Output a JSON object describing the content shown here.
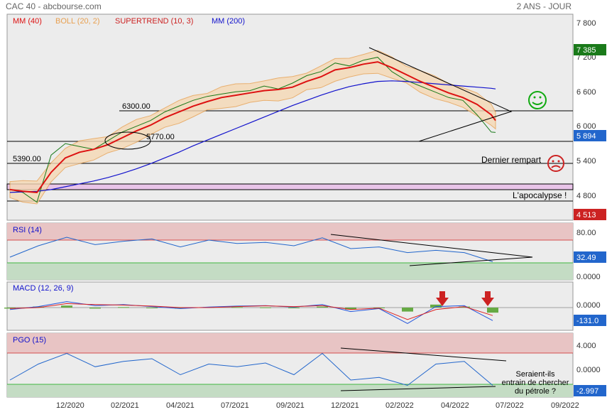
{
  "header": {
    "title": "CAC 40 - abcbourse.com",
    "period": "2 ANS - JOUR"
  },
  "colors": {
    "price": "#1a7a1a",
    "bear": "#cc2222",
    "mm40": "#dd1111",
    "boll": "#e8a050",
    "boll_fill": "#f5d9b5",
    "supertrend": "#119911",
    "mm200": "#1111cc",
    "rsi": "#2266cc",
    "macd_line": "#2255dd",
    "macd_signal": "#dd2222",
    "macd_hist": "#66aa44",
    "pgo": "#2266cc",
    "pgo_signal": "#dd2222",
    "zone_high": "#e8c4c4",
    "zone_low": "#c4dcc4",
    "panel_bg": "#ececec"
  },
  "chart_data": [
    {
      "type": "line",
      "title": "Prix",
      "legend": [
        {
          "label": "MM (40)",
          "color": "#dd1111"
        },
        {
          "label": "BOLL (20, 2)",
          "color": "#e8a050"
        },
        {
          "label": "SUPERTREND (10, 3)",
          "color": "#cc2222"
        },
        {
          "label": "MM (200)",
          "color": "#1111cc"
        }
      ],
      "x_ticks": [
        "12/2020",
        "02/2021",
        "04/2021",
        "07/2021",
        "09/2021",
        "12/2021",
        "02/2022",
        "04/2022",
        "07/2022",
        "09/2022"
      ],
      "y_ticks": [
        "7 800",
        "7 200",
        "6 600",
        "6 000",
        "5 400",
        "4 800"
      ],
      "ylim": [
        4300,
        8000
      ],
      "annotations": {
        "level_6300": "6300.00",
        "level_5770": "5770.00",
        "level_5390": "5390.00",
        "dernier_rempart": "Dernier rempart",
        "apocalypse": "L'apocalypse !"
      },
      "badges": [
        {
          "value": "7 385",
          "color": "#1a7a1a"
        },
        {
          "value": "5 894",
          "color": "#2266cc"
        },
        {
          "value": "4 513",
          "color": "#cc2222"
        }
      ],
      "series": {
        "close_x": [
          0,
          18,
          38,
          58,
          78,
          98,
          118,
          138,
          158,
          178,
          198,
          218,
          238,
          258,
          278,
          298,
          318,
          338,
          358,
          378,
          398,
          418,
          438,
          458,
          478,
          498,
          518,
          538,
          558,
          578,
          598,
          618,
          638,
          658,
          678,
          684
        ],
        "close_y": [
          4900,
          4850,
          4680,
          5500,
          5700,
          5650,
          5600,
          5750,
          5900,
          6000,
          6100,
          6250,
          6350,
          6450,
          6520,
          6560,
          6600,
          6620,
          6700,
          6650,
          6750,
          6880,
          6950,
          7100,
          7050,
          7150,
          7200,
          6950,
          6800,
          6700,
          6600,
          6500,
          6450,
          6200,
          5900,
          5894
        ],
        "mm40_y": [
          4900,
          4870,
          4850,
          5200,
          5450,
          5550,
          5600,
          5680,
          5800,
          5920,
          6020,
          6150,
          6250,
          6350,
          6430,
          6500,
          6540,
          6580,
          6620,
          6640,
          6680,
          6780,
          6860,
          6980,
          7020,
          7080,
          7120,
          7020,
          6900,
          6780,
          6680,
          6580,
          6500,
          6380,
          6200,
          6100
        ],
        "mm200_y": [
          4850,
          4860,
          4870,
          4900,
          4950,
          5000,
          5050,
          5110,
          5180,
          5260,
          5350,
          5450,
          5550,
          5660,
          5760,
          5860,
          5960,
          6060,
          6160,
          6260,
          6360,
          6450,
          6540,
          6620,
          6690,
          6740,
          6780,
          6790,
          6780,
          6760,
          6740,
          6720,
          6700,
          6680,
          6660,
          6650
        ]
      }
    },
    {
      "type": "line",
      "title": "RSI (14)",
      "y_ticks": [
        "80.00",
        "0.0000"
      ],
      "badge": {
        "value": "32.49",
        "color": "#2266cc"
      },
      "zones": {
        "high": 70,
        "low": 30
      },
      "ylim": [
        0,
        100
      ],
      "series": {
        "x": [
          0,
          40,
          80,
          120,
          160,
          200,
          240,
          280,
          320,
          360,
          400,
          440,
          480,
          520,
          560,
          600,
          640,
          680
        ],
        "y": [
          40,
          60,
          75,
          62,
          68,
          72,
          58,
          70,
          64,
          66,
          60,
          74,
          55,
          58,
          48,
          52,
          48,
          32
        ]
      }
    },
    {
      "type": "line",
      "title": "MACD (12, 26, 9)",
      "y_ticks": [
        "0.0000"
      ],
      "badge": {
        "value": "-131.0",
        "color": "#2266cc"
      },
      "ylim": [
        -250,
        150
      ],
      "series": {
        "x": [
          0,
          40,
          80,
          120,
          160,
          200,
          240,
          280,
          320,
          360,
          400,
          440,
          480,
          520,
          560,
          600,
          640,
          680
        ],
        "macd": [
          -20,
          10,
          60,
          20,
          30,
          10,
          -10,
          5,
          15,
          20,
          5,
          30,
          -40,
          -10,
          -160,
          10,
          20,
          -131
        ],
        "signal": [
          -10,
          0,
          40,
          30,
          25,
          15,
          0,
          0,
          10,
          18,
          10,
          20,
          -20,
          -5,
          -120,
          -20,
          10,
          -80
        ]
      }
    },
    {
      "type": "line",
      "title": "PGO (15)",
      "y_ticks": [
        "4.000",
        "0.0000"
      ],
      "badge": {
        "value": "-2.997",
        "color": "#2266cc"
      },
      "annotation": "Seraient-ils\nentrain de chercher\ndu pétrole ?",
      "ylim": [
        -4,
        6
      ],
      "series": {
        "x": [
          0,
          40,
          80,
          120,
          160,
          200,
          240,
          280,
          320,
          360,
          400,
          440,
          480,
          520,
          560,
          600,
          640,
          680
        ],
        "y": [
          -2,
          1,
          3,
          0.5,
          1.5,
          2,
          -1,
          1,
          0.5,
          1.2,
          -1,
          3,
          -2,
          -1.5,
          -3,
          1,
          1.5,
          -2.997
        ]
      }
    }
  ]
}
